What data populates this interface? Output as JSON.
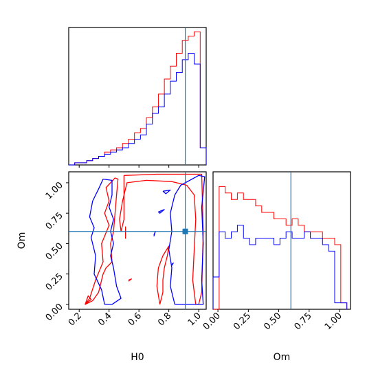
{
  "chart_data": {
    "type": "corner",
    "parameters": [
      "H0",
      "Om"
    ],
    "truth": {
      "H0": 0.91,
      "Om": 0.6
    },
    "colors": {
      "red": "#ff0000",
      "blue": "#0000ff",
      "truth": "#1f77b4"
    },
    "H0_axis": {
      "label": "H0",
      "xlim": [
        0.13,
        1.05
      ],
      "ticks": [
        0.2,
        0.4,
        0.6,
        0.8,
        1.0
      ],
      "tick_labels": [
        "0.2",
        "0.4",
        "0.6",
        "0.8",
        "1.0"
      ]
    },
    "Om_axis": {
      "label": "Om",
      "lim": [
        -0.04,
        1.09
      ],
      "ticks": [
        0.0,
        0.25,
        0.5,
        0.75,
        1.0
      ],
      "tick_labels": [
        "0.00",
        "0.25",
        "0.50",
        "0.75",
        "1.00"
      ]
    },
    "H0_hist": {
      "edges": [
        0.13,
        0.17,
        0.21,
        0.25,
        0.29,
        0.33,
        0.37,
        0.41,
        0.45,
        0.49,
        0.53,
        0.57,
        0.61,
        0.65,
        0.69,
        0.73,
        0.77,
        0.81,
        0.85,
        0.89,
        0.93,
        0.97,
        1.01,
        1.05
      ],
      "red": [
        0,
        1,
        1,
        2,
        3,
        4,
        6,
        7,
        8,
        10,
        12,
        15,
        17,
        22,
        27,
        33,
        40,
        46,
        52,
        58,
        60,
        62,
        8
      ],
      "blue": [
        0,
        1,
        1,
        2,
        3,
        4,
        5,
        6,
        7,
        8,
        10,
        12,
        14,
        19,
        24,
        27,
        33,
        39,
        43,
        49,
        52,
        47,
        8
      ],
      "ymax": 64
    },
    "Om_hist": {
      "edges": [
        -0.04,
        0.01,
        0.06,
        0.11,
        0.16,
        0.21,
        0.26,
        0.31,
        0.36,
        0.41,
        0.46,
        0.51,
        0.56,
        0.61,
        0.66,
        0.71,
        0.76,
        0.81,
        0.86,
        0.91,
        0.96,
        1.01,
        1.06
      ],
      "red": [
        0,
        19,
        18,
        17,
        18,
        17,
        17,
        16,
        15,
        15,
        14,
        14,
        13,
        14,
        13,
        12,
        12,
        12,
        11,
        11,
        10,
        1
      ],
      "blue": [
        5,
        12,
        11,
        12,
        13,
        11,
        10,
        11,
        11,
        11,
        10,
        11,
        12,
        11,
        11,
        12,
        11,
        11,
        10,
        9,
        1,
        1
      ],
      "ymax": 20
    },
    "contours": {
      "red": [
        [
          [
            0.5,
            1.06
          ],
          [
            0.72,
            1.07
          ],
          [
            1.02,
            1.07
          ],
          [
            1.03,
            0.6
          ],
          [
            1.02,
            0.1
          ],
          [
            1.0,
            0.0
          ],
          [
            0.98,
            0.0
          ],
          [
            0.96,
            0.2
          ],
          [
            0.97,
            0.45
          ],
          [
            0.98,
            0.7
          ],
          [
            0.97,
            0.9
          ],
          [
            0.92,
            0.98
          ],
          [
            0.82,
            1.01
          ],
          [
            0.65,
            1.02
          ],
          [
            0.52,
            1.0
          ],
          [
            0.49,
            0.85
          ],
          [
            0.47,
            0.7
          ],
          [
            0.48,
            0.6
          ],
          [
            0.5,
            0.7
          ],
          [
            0.5,
            0.9
          ],
          [
            0.5,
            1.06
          ]
        ],
        [
          [
            0.44,
            1.04
          ],
          [
            0.38,
            0.96
          ],
          [
            0.4,
            0.85
          ],
          [
            0.37,
            0.75
          ],
          [
            0.4,
            0.65
          ],
          [
            0.35,
            0.5
          ],
          [
            0.36,
            0.35
          ],
          [
            0.31,
            0.2
          ],
          [
            0.27,
            0.05
          ],
          [
            0.24,
            0.0
          ],
          [
            0.29,
            0.03
          ],
          [
            0.33,
            0.1
          ],
          [
            0.36,
            0.25
          ],
          [
            0.38,
            0.3
          ],
          [
            0.42,
            0.35
          ],
          [
            0.41,
            0.5
          ],
          [
            0.43,
            0.6
          ],
          [
            0.44,
            0.75
          ],
          [
            0.45,
            0.9
          ],
          [
            0.46,
            1.03
          ],
          [
            0.44,
            1.04
          ]
        ],
        [
          [
            0.74,
            0.0
          ],
          [
            0.72,
            0.15
          ],
          [
            0.73,
            0.3
          ],
          [
            0.76,
            0.4
          ],
          [
            0.8,
            0.48
          ],
          [
            0.79,
            0.4
          ],
          [
            0.77,
            0.3
          ],
          [
            0.76,
            0.2
          ],
          [
            0.76,
            0.1
          ],
          [
            0.74,
            0.0
          ]
        ],
        [
          [
            0.24,
            0.0
          ],
          [
            0.28,
            0.04
          ],
          [
            0.26,
            0.07
          ],
          [
            0.24,
            0.0
          ]
        ],
        [
          [
            0.51,
            0.54
          ],
          [
            0.51,
            0.64
          ]
        ],
        [
          [
            0.53,
            0.19
          ],
          [
            0.55,
            0.21
          ],
          [
            0.53,
            0.2
          ]
        ]
      ],
      "blue": [
        [
          [
            0.37,
            0.0
          ],
          [
            0.35,
            0.12
          ],
          [
            0.3,
            0.25
          ],
          [
            0.31,
            0.4
          ],
          [
            0.28,
            0.55
          ],
          [
            0.3,
            0.63
          ],
          [
            0.27,
            0.72
          ],
          [
            0.29,
            0.85
          ],
          [
            0.33,
            0.95
          ],
          [
            0.36,
            1.03
          ],
          [
            0.42,
            1.02
          ],
          [
            0.42,
            0.9
          ],
          [
            0.4,
            0.8
          ],
          [
            0.43,
            0.7
          ],
          [
            0.41,
            0.6
          ],
          [
            0.43,
            0.5
          ],
          [
            0.41,
            0.4
          ],
          [
            0.43,
            0.3
          ],
          [
            0.45,
            0.15
          ],
          [
            0.48,
            0.05
          ],
          [
            0.42,
            0.0
          ],
          [
            0.37,
            0.0
          ]
        ],
        [
          [
            0.84,
            0.0
          ],
          [
            0.81,
            0.15
          ],
          [
            0.82,
            0.3
          ],
          [
            0.8,
            0.45
          ],
          [
            0.82,
            0.6
          ],
          [
            0.81,
            0.75
          ],
          [
            0.84,
            0.9
          ],
          [
            0.88,
            0.98
          ],
          [
            1.0,
            1.06
          ],
          [
            1.04,
            1.05
          ],
          [
            1.02,
            0.8
          ],
          [
            1.03,
            0.5
          ],
          [
            1.02,
            0.2
          ],
          [
            1.03,
            0.0
          ],
          [
            0.84,
            0.0
          ]
        ],
        [
          [
            0.76,
            0.93
          ],
          [
            0.81,
            0.94
          ],
          [
            0.78,
            0.91
          ],
          [
            0.76,
            0.93
          ]
        ],
        [
          [
            0.73,
            0.76
          ],
          [
            0.77,
            0.78
          ],
          [
            0.74,
            0.75
          ],
          [
            0.73,
            0.76
          ]
        ],
        [
          [
            0.7,
            0.56
          ],
          [
            0.71,
            0.6
          ],
          [
            0.7,
            0.57
          ]
        ],
        [
          [
            0.82,
            0.32
          ],
          [
            0.83,
            0.34
          ],
          [
            0.82,
            0.33
          ]
        ]
      ]
    }
  }
}
